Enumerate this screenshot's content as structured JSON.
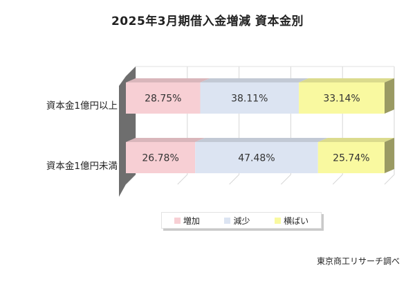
{
  "chart_data": {
    "type": "bar",
    "orientation": "horizontal",
    "stacked": "percent",
    "three_d": true,
    "title": "2025年3月期借入金増減  資本金別",
    "categories": [
      "資本金1億円以上",
      "資本金1億円未満"
    ],
    "series": [
      {
        "name": "増加",
        "color": "#f7cfd4",
        "values": [
          28.75,
          26.78
        ],
        "labels": [
          "28.75%",
          "26.78%"
        ]
      },
      {
        "name": "減少",
        "color": "#dce4f2",
        "values": [
          38.11,
          47.48
        ],
        "labels": [
          "38.11%",
          "47.48%"
        ]
      },
      {
        "name": "横ばい",
        "color": "#f9f9a0",
        "values": [
          33.14,
          25.74
        ],
        "labels": [
          "33.14%",
          "25.74%"
        ]
      }
    ],
    "xlim": [
      0,
      100
    ],
    "grid": true,
    "legend_position": "bottom",
    "source": "東京商工リサーチ調べ"
  }
}
